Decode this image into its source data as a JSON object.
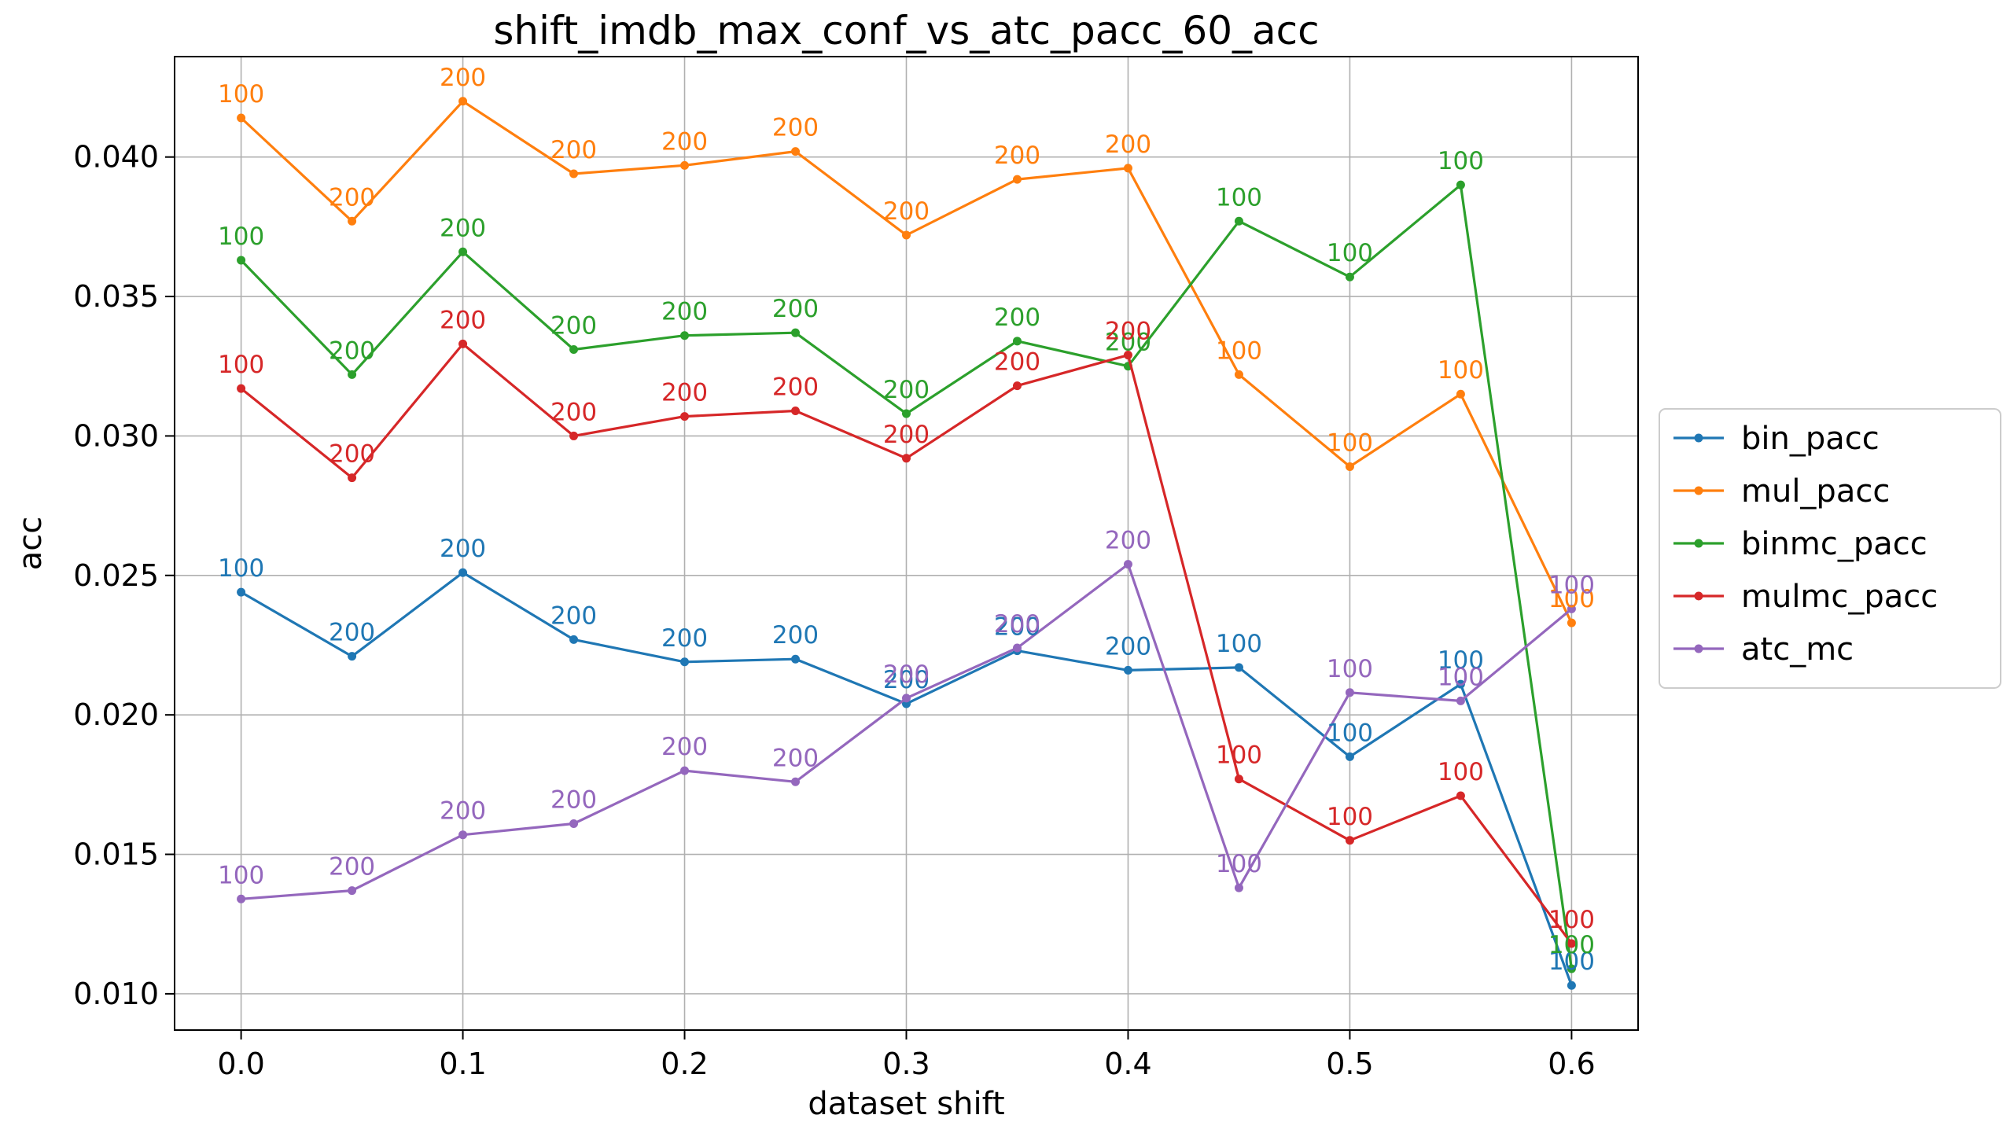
{
  "chart_data": {
    "type": "line",
    "title": "shift_imdb_max_conf_vs_atc_pacc_60_acc",
    "xlabel": "dataset shift",
    "ylabel": "acc",
    "xlim": [
      -0.03,
      0.63
    ],
    "ylim": [
      0.0087,
      0.0436
    ],
    "xticks": [
      0.0,
      0.1,
      0.2,
      0.3,
      0.4,
      0.5,
      0.6
    ],
    "xtick_labels": [
      "0.0",
      "0.1",
      "0.2",
      "0.3",
      "0.4",
      "0.5",
      "0.6"
    ],
    "yticks": [
      0.01,
      0.015,
      0.02,
      0.025,
      0.03,
      0.035,
      0.04
    ],
    "ytick_labels": [
      "0.010",
      "0.015",
      "0.020",
      "0.025",
      "0.030",
      "0.035",
      "0.040"
    ],
    "grid": true,
    "legend_position": "center-right outside",
    "x": [
      0.0,
      0.05,
      0.1,
      0.15,
      0.2,
      0.25,
      0.3,
      0.35,
      0.4,
      0.45,
      0.5,
      0.55,
      0.6
    ],
    "series": [
      {
        "name": "bin_pacc",
        "color": "#1f77b4",
        "values": [
          0.0244,
          0.0221,
          0.0251,
          0.0227,
          0.0219,
          0.022,
          0.0204,
          0.0223,
          0.0216,
          0.0217,
          0.0185,
          0.0211,
          0.0103
        ],
        "labels": [
          "100",
          "200",
          "200",
          "200",
          "200",
          "200",
          "200",
          "200",
          "200",
          "100",
          "100",
          "100",
          "100"
        ]
      },
      {
        "name": "mul_pacc",
        "color": "#ff7f0e",
        "values": [
          0.0414,
          0.0377,
          0.042,
          0.0394,
          0.0397,
          0.0402,
          0.0372,
          0.0392,
          0.0396,
          0.0322,
          0.0289,
          0.0315,
          0.0233
        ],
        "labels": [
          "100",
          "200",
          "200",
          "200",
          "200",
          "200",
          "200",
          "200",
          "200",
          "100",
          "100",
          "100",
          "100"
        ]
      },
      {
        "name": "binmc_pacc",
        "color": "#2ca02c",
        "values": [
          0.0363,
          0.0322,
          0.0366,
          0.0331,
          0.0336,
          0.0337,
          0.0308,
          0.0334,
          0.0325,
          0.0377,
          0.0357,
          0.039,
          0.0109
        ],
        "labels": [
          "100",
          "200",
          "200",
          "200",
          "200",
          "200",
          "200",
          "200",
          "200",
          "100",
          "100",
          "100",
          "100"
        ]
      },
      {
        "name": "mulmc_pacc",
        "color": "#d62728",
        "values": [
          0.0317,
          0.0285,
          0.0333,
          0.03,
          0.0307,
          0.0309,
          0.0292,
          0.0318,
          0.0329,
          0.0177,
          0.0155,
          0.0171,
          0.0118
        ],
        "labels": [
          "100",
          "200",
          "200",
          "200",
          "200",
          "200",
          "200",
          "200",
          "200",
          "100",
          "100",
          "100",
          "100"
        ]
      },
      {
        "name": "atc_mc",
        "color": "#9467bd",
        "values": [
          0.0134,
          0.0137,
          0.0157,
          0.0161,
          0.018,
          0.0176,
          0.0206,
          0.0224,
          0.0254,
          0.0138,
          0.0208,
          0.0205,
          0.0238
        ],
        "labels": [
          "100",
          "200",
          "200",
          "200",
          "200",
          "200",
          "200",
          "200",
          "200",
          "100",
          "100",
          "100",
          "100"
        ]
      }
    ]
  }
}
